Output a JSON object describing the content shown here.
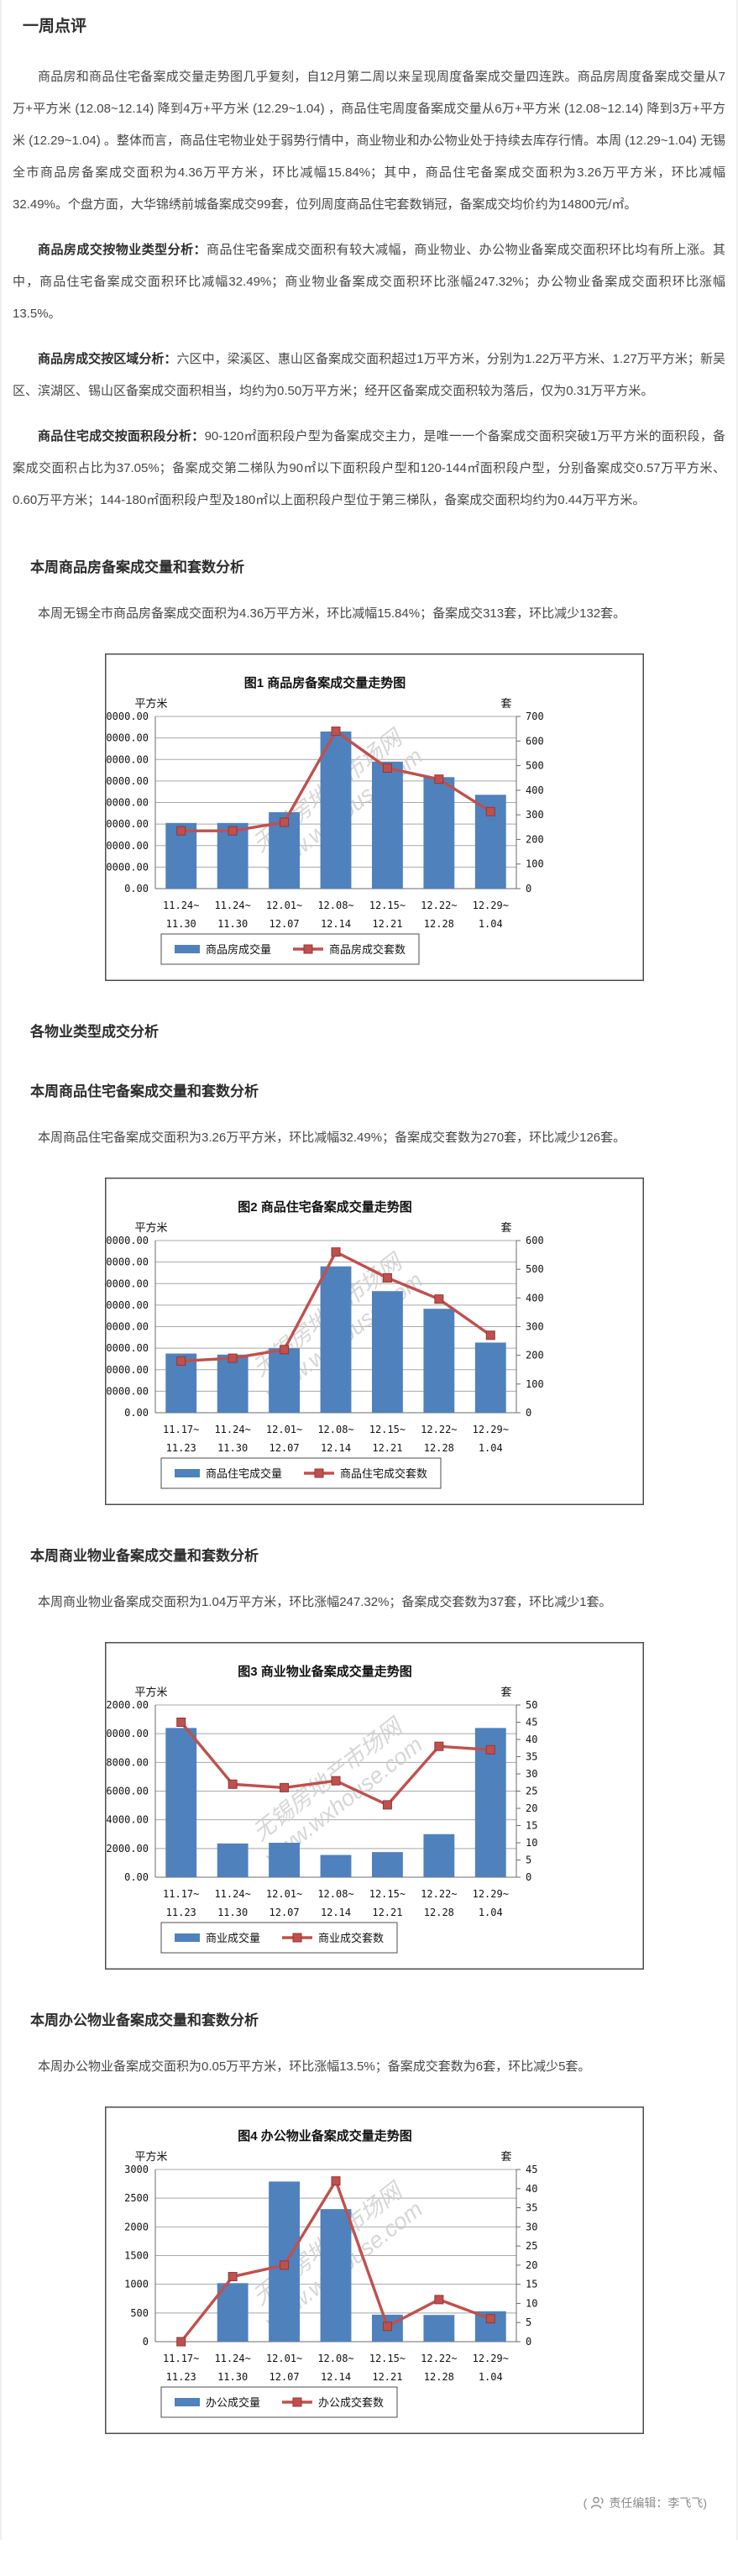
{
  "page_title": "一周点评",
  "intro": "商品房和商品住宅备案成交量走势图几乎复刻，自12月第二周以来呈现周度备案成交量四连跌。商品房周度备案成交量从7万+平方米 (12.08~12.14) 降到4万+平方米 (12.29~1.04) ，商品住宅周度备案成交量从6万+平方米 (12.08~12.14) 降到3万+平方米 (12.29~1.04) 。整体而言，商品住宅物业处于弱势行情中，商业物业和办公物业处于持续去库存行情。本周 (12.29~1.04) 无锡全市商品房备案成交面积为4.36万平方米，环比减幅15.84%；其中，商品住宅备案成交面积为3.26万平方米，环比减幅32.49%。个盘方面，大华锦绣前城备案成交99套，位列周度商品住宅套数销冠，备案成交均价约为14800元/㎡。",
  "analysis_paragraphs": [
    {
      "lead": "商品房成交按物业类型分析：",
      "text": "商品住宅备案成交面积有较大减幅，商业物业、办公物业备案成交面积环比均有所上涨。其中，商品住宅备案成交面积环比减幅32.49%；商业物业备案成交面积环比涨幅247.32%；办公物业备案成交面积环比涨幅13.5%。"
    },
    {
      "lead": "商品房成交按区域分析：",
      "text": "六区中，梁溪区、惠山区备案成交面积超过1万平方米，分别为1.22万平方米、1.27万平方米；新吴区、滨湖区、锡山区备案成交面积相当，均约为0.50万平方米；经开区备案成交面积较为落后，仅为0.31万平方米。"
    },
    {
      "lead": "商品住宅成交按面积段分析：",
      "text": "90-120㎡面积段户型为备案成交主力，是唯一一个备案成交面积突破1万平方米的面积段，备案成交面积占比为37.05%；备案成交第二梯队为90㎡以下面积段户型和120-144㎡面积段户型，分别备案成交0.57万平方米、0.60万平方米；144-180㎡面积段户型及180㎡以上面积段户型位于第三梯队，备案成交面积均约为0.44万平方米。"
    }
  ],
  "sections": [
    {
      "heading": "本周商品房备案成交量和套数分析",
      "text": "本周无锡全市商品房备案成交面积为4.36万平方米，环比减幅15.84%；备案成交313套，环比减少132套。"
    },
    {
      "heading": "各物业类型成交分析",
      "text": ""
    },
    {
      "heading": "本周商品住宅备案成交量和套数分析",
      "text": "本周商品住宅备案成交面积为3.26万平方米，环比减幅32.49%；备案成交套数为270套，环比减少126套。"
    },
    {
      "heading": "本周商业物业备案成交量和套数分析",
      "text": "本周商业物业备案成交面积为1.04万平方米，环比涨幅247.32%；备案成交套数为37套，环比减少1套。"
    },
    {
      "heading": "本周办公物业备案成交量和套数分析",
      "text": "本周办公物业备案成交面积为0.05万平方米，环比涨幅13.5%；备案成交套数为6套，环比减少5套。"
    }
  ],
  "footer": {
    "open": "(",
    "label": "责任编辑：李飞飞",
    "close": ")"
  },
  "colors": {
    "bar": "#4f81bd",
    "line": "#c0504d",
    "grid": "#a8a8a8",
    "axis": "#6b6b6b",
    "watermark": "#cccccc",
    "figure_border": "#4d4d4d"
  },
  "chart_data": [
    {
      "type": "combo-bar-line",
      "title": "图1  商品房备案成交量走势图",
      "left_axis": {
        "unit": "平方米",
        "min": 0,
        "max": 80000,
        "step": 10000,
        "decimals": 2
      },
      "right_axis": {
        "unit": "套",
        "min": 0,
        "max": 700,
        "step": 100
      },
      "categories": [
        [
          "11.24~",
          "11.30"
        ],
        [
          "11.24~",
          "11.30"
        ],
        [
          "12.01~",
          "12.07"
        ],
        [
          "12.08~",
          "12.14"
        ],
        [
          "12.15~",
          "12.21"
        ],
        [
          "12.22~",
          "12.28"
        ],
        [
          "12.29~",
          "1.04"
        ]
      ],
      "series": [
        {
          "name": "商品房成交量",
          "kind": "bar",
          "axis": "left",
          "values": [
            30500,
            30500,
            35500,
            73000,
            59000,
            51800,
            43600
          ]
        },
        {
          "name": "商品房成交套数",
          "kind": "line",
          "axis": "right",
          "values": [
            235,
            235,
            270,
            640,
            490,
            445,
            313
          ]
        }
      ],
      "watermark": [
        "无锡房地产市场网",
        "www.wxhouse.com"
      ],
      "grid": true,
      "legend_position": "bottom"
    },
    {
      "type": "combo-bar-line",
      "title": "图2  商品住宅备案成交量走势图",
      "left_axis": {
        "unit": "平方米",
        "min": 0,
        "max": 80000,
        "step": 10000,
        "decimals": 2
      },
      "right_axis": {
        "unit": "套",
        "min": 0,
        "max": 600,
        "step": 100
      },
      "categories": [
        [
          "11.17~",
          "11.23"
        ],
        [
          "11.24~",
          "11.30"
        ],
        [
          "12.01~",
          "12.07"
        ],
        [
          "12.08~",
          "12.14"
        ],
        [
          "12.15~",
          "12.21"
        ],
        [
          "12.22~",
          "12.28"
        ],
        [
          "12.29~",
          "1.04"
        ]
      ],
      "series": [
        {
          "name": "商品住宅成交量",
          "kind": "bar",
          "axis": "left",
          "values": [
            27500,
            27000,
            30000,
            68000,
            56500,
            48300,
            32600
          ]
        },
        {
          "name": "商品住宅成交套数",
          "kind": "line",
          "axis": "right",
          "values": [
            180,
            190,
            220,
            560,
            470,
            396,
            270
          ]
        }
      ],
      "watermark": [
        "无锡房地产市场网",
        "www.wxhouse.com"
      ],
      "grid": true,
      "legend_position": "bottom"
    },
    {
      "type": "combo-bar-line",
      "title": "图3  商业物业备案成交量走势图",
      "left_axis": {
        "unit": "平方米",
        "min": 0,
        "max": 12000,
        "step": 2000,
        "decimals": 2
      },
      "right_axis": {
        "unit": "套",
        "min": 0,
        "max": 50,
        "step": 5
      },
      "categories": [
        [
          "11.17~",
          "11.23"
        ],
        [
          "11.24~",
          "11.30"
        ],
        [
          "12.01~",
          "12.07"
        ],
        [
          "12.08~",
          "12.14"
        ],
        [
          "12.15~",
          "12.21"
        ],
        [
          "12.22~",
          "12.28"
        ],
        [
          "12.29~",
          "1.04"
        ]
      ],
      "series": [
        {
          "name": "商业成交量",
          "kind": "bar",
          "axis": "left",
          "values": [
            10400,
            2350,
            2400,
            1550,
            1750,
            3000,
            10400
          ]
        },
        {
          "name": "商业成交套数",
          "kind": "line",
          "axis": "right",
          "values": [
            45,
            27,
            26,
            28,
            21,
            38,
            37
          ]
        }
      ],
      "watermark": [
        "无锡房地产市场网",
        "www.wxhouse.com"
      ],
      "grid": true,
      "legend_position": "bottom"
    },
    {
      "type": "combo-bar-line",
      "title": "图4  办公物业备案成交量走势图",
      "left_axis": {
        "unit": "平方米",
        "min": 0,
        "max": 3000,
        "step": 500,
        "decimals": 0
      },
      "right_axis": {
        "unit": "套",
        "min": 0,
        "max": 45,
        "step": 5
      },
      "categories": [
        [
          "11.17~",
          "11.23"
        ],
        [
          "11.24~",
          "11.30"
        ],
        [
          "12.01~",
          "12.07"
        ],
        [
          "12.08~",
          "12.14"
        ],
        [
          "12.15~",
          "12.21"
        ],
        [
          "12.22~",
          "12.28"
        ],
        [
          "12.29~",
          "1.04"
        ]
      ],
      "series": [
        {
          "name": "办公成交量",
          "kind": "bar",
          "axis": "left",
          "values": [
            0,
            1020,
            2790,
            2310,
            470,
            465,
            530
          ]
        },
        {
          "name": "办公成交套数",
          "kind": "line",
          "axis": "right",
          "values": [
            0,
            17,
            20,
            42,
            4,
            11,
            6
          ]
        }
      ],
      "watermark": [
        "无锡房地产市场网",
        "www.wxhouse.com"
      ],
      "grid": true,
      "legend_position": "bottom"
    }
  ]
}
